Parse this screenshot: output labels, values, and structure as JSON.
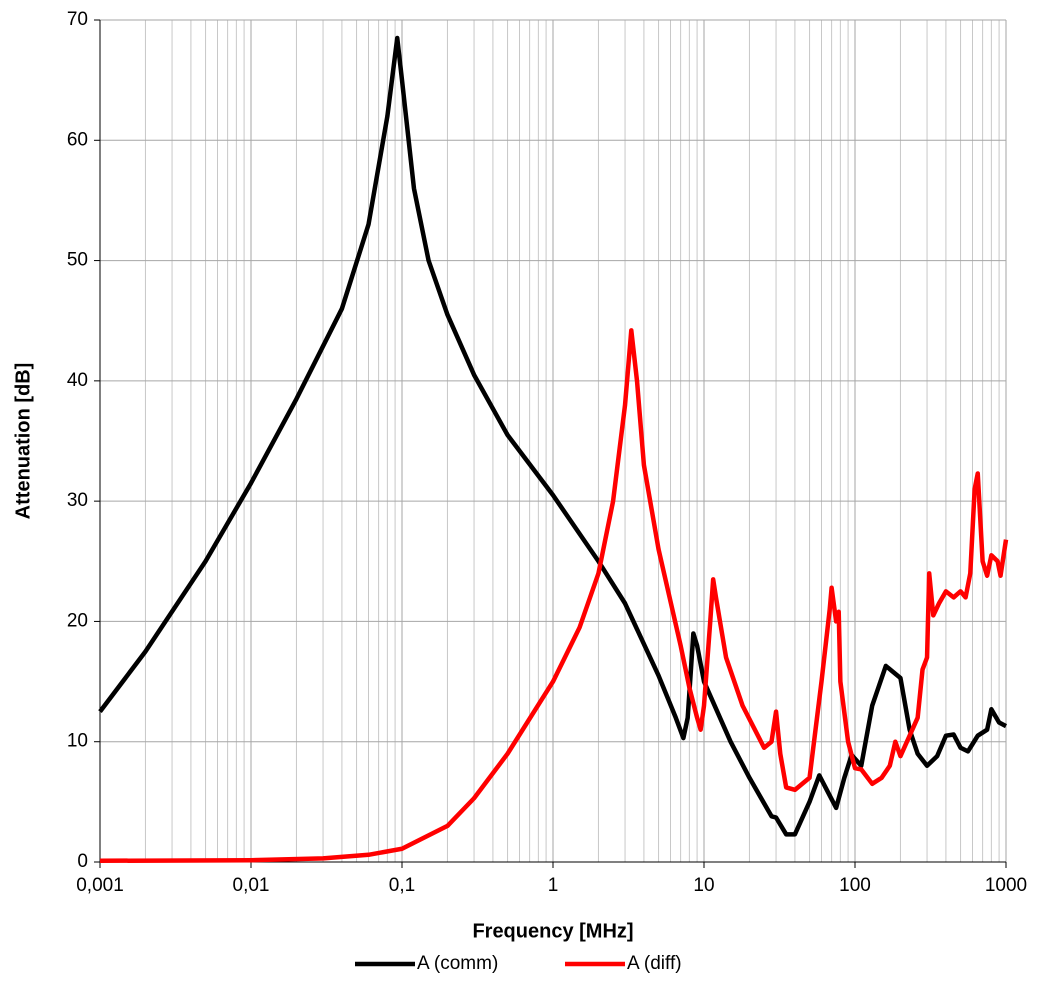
{
  "chart_data": {
    "type": "line",
    "x_label": "Frequency [MHz]",
    "y_label": "Attenuation [dB]",
    "log_x": true,
    "grid": true,
    "minor_grid": true,
    "legend": "bottom",
    "xlim": [
      0.001,
      1000
    ],
    "ylim": [
      0,
      70
    ],
    "xticks": [
      {
        "value": 0.001,
        "label": "0,001"
      },
      {
        "value": 0.01,
        "label": "0,01"
      },
      {
        "value": 0.1,
        "label": "0,1"
      },
      1,
      10,
      100,
      1000
    ],
    "yticks": [
      0,
      10,
      20,
      30,
      40,
      50,
      60,
      70
    ],
    "series": [
      {
        "name": "A (comm)",
        "color": "#000000",
        "x": [
          0.001,
          0.002,
          0.005,
          0.01,
          0.02,
          0.04,
          0.06,
          0.08,
          0.093,
          0.1,
          0.12,
          0.15,
          0.2,
          0.3,
          0.5,
          1,
          2,
          3,
          5,
          6.5,
          7.3,
          7.8,
          8.5,
          9,
          10,
          15,
          20,
          28,
          30,
          35,
          40,
          50,
          58,
          65,
          75,
          85,
          95,
          110,
          130,
          160,
          200,
          230,
          260,
          300,
          350,
          400,
          450,
          500,
          560,
          600,
          650,
          750,
          800,
          900,
          1000
        ],
        "values": [
          12.5,
          17.5,
          25,
          31.5,
          38.5,
          46,
          53,
          62,
          68.5,
          65,
          56,
          50,
          45.5,
          40.5,
          35.5,
          30.5,
          25,
          21.5,
          15.5,
          12,
          10.3,
          12,
          19,
          18,
          15,
          10,
          7,
          3.8,
          3.7,
          2.3,
          2.3,
          5,
          7.2,
          6,
          4.5,
          7,
          8.9,
          8,
          13,
          16.3,
          15.3,
          11,
          9,
          8,
          8.8,
          10.5,
          10.6,
          9.5,
          9.2,
          9.8,
          10.5,
          11,
          12.7,
          11.6,
          11.3
        ]
      },
      {
        "name": "A (diff)",
        "color": "#ff0000",
        "x": [
          0.001,
          0.01,
          0.03,
          0.06,
          0.1,
          0.2,
          0.3,
          0.5,
          1,
          1.5,
          2,
          2.5,
          3,
          3.3,
          3.6,
          4,
          5,
          7,
          8,
          9,
          9.5,
          10,
          11,
          11.5,
          12,
          14,
          18,
          25,
          28,
          30,
          32,
          35,
          40,
          50,
          60,
          68,
          70,
          75,
          78,
          80,
          90,
          100,
          110,
          130,
          150,
          170,
          185,
          200,
          230,
          260,
          280,
          300,
          310,
          330,
          360,
          400,
          450,
          500,
          540,
          580,
          620,
          650,
          700,
          750,
          800,
          880,
          920,
          1000
        ],
        "values": [
          0.1,
          0.15,
          0.3,
          0.6,
          1.1,
          3,
          5.3,
          9,
          15,
          19.5,
          24,
          30,
          38,
          44.2,
          40,
          33,
          26,
          18,
          14.5,
          12,
          11,
          13,
          20,
          23.5,
          22,
          17,
          13,
          9.5,
          10,
          12.5,
          9,
          6.2,
          6,
          7,
          15,
          21,
          22.8,
          20,
          20.8,
          15,
          10,
          7.8,
          7.7,
          6.5,
          7,
          8,
          10,
          8.8,
          10.5,
          12,
          16,
          17,
          24,
          20.5,
          21.5,
          22.5,
          22,
          22.5,
          22,
          24,
          31,
          32.3,
          25,
          23.8,
          25.5,
          25,
          23.8,
          26.8
        ]
      }
    ]
  }
}
